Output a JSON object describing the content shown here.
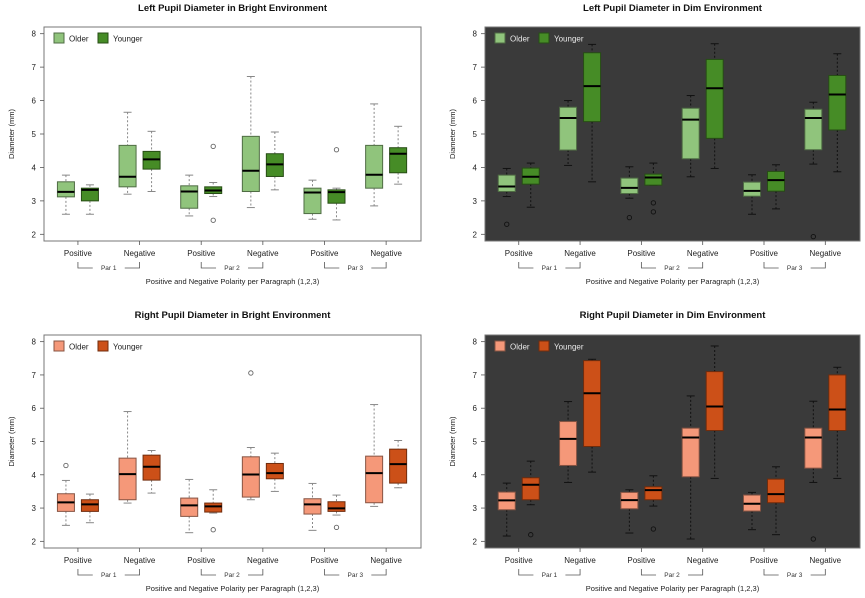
{
  "chart_data": [
    {
      "type": "boxplot",
      "id": "left-bright",
      "title": "Left Pupil Diameter in Bright Environment",
      "xlabel": "Positive and Negative Polarity per Paragraph (1,2,3)",
      "ylabel": "Diameter (mm)",
      "ylim": [
        1.8,
        8.2
      ],
      "yticks": [
        2,
        3,
        4,
        5,
        6,
        7,
        8
      ],
      "background": "#ffffff",
      "legend_text_color": "#222222",
      "legend": [
        {
          "name": "Older",
          "color": "#90c47c"
        },
        {
          "name": "Younger",
          "color": "#468c26"
        }
      ],
      "categories": [
        "Positive",
        "Negative",
        "Positive",
        "Negative",
        "Positive",
        "Negative"
      ],
      "groups": [
        "Par 1",
        "Par 2",
        "Par 3"
      ],
      "series": [
        {
          "name": "Older",
          "color": "#90c47c",
          "boxes": [
            {
              "min": 2.6,
              "q1": 3.12,
              "median": 3.27,
              "q3": 3.57,
              "max": 3.77,
              "outliers": []
            },
            {
              "min": 3.2,
              "q1": 3.42,
              "median": 3.72,
              "q3": 4.66,
              "max": 5.65,
              "outliers": []
            },
            {
              "min": 2.55,
              "q1": 2.78,
              "median": 3.28,
              "q3": 3.45,
              "max": 3.77,
              "outliers": []
            },
            {
              "min": 2.8,
              "q1": 3.28,
              "median": 3.9,
              "q3": 4.93,
              "max": 6.72,
              "outliers": []
            },
            {
              "min": 2.45,
              "q1": 2.62,
              "median": 3.25,
              "q3": 3.38,
              "max": 3.62,
              "outliers": []
            },
            {
              "min": 2.85,
              "q1": 3.38,
              "median": 3.78,
              "q3": 4.66,
              "max": 5.9,
              "outliers": []
            }
          ]
        },
        {
          "name": "Younger",
          "color": "#468c26",
          "boxes": [
            {
              "min": 2.6,
              "q1": 3.0,
              "median": 3.33,
              "q3": 3.38,
              "max": 3.48,
              "outliers": []
            },
            {
              "min": 3.28,
              "q1": 3.95,
              "median": 4.24,
              "q3": 4.48,
              "max": 5.08,
              "outliers": []
            },
            {
              "min": 3.13,
              "q1": 3.22,
              "median": 3.31,
              "q3": 3.42,
              "max": 3.55,
              "outliers": [
                4.63,
                2.42
              ]
            },
            {
              "min": 3.33,
              "q1": 3.73,
              "median": 4.09,
              "q3": 4.41,
              "max": 5.06,
              "outliers": []
            },
            {
              "min": 2.43,
              "q1": 2.93,
              "median": 3.26,
              "q3": 3.33,
              "max": 3.38,
              "outliers": [
                4.53
              ]
            },
            {
              "min": 3.5,
              "q1": 3.84,
              "median": 4.41,
              "q3": 4.59,
              "max": 5.23,
              "outliers": []
            }
          ]
        }
      ]
    },
    {
      "type": "boxplot",
      "id": "left-dim",
      "title": "Left Pupil Diameter in Dim Environment",
      "xlabel": "Positive and Negative Polarity per Paragraph (1,2,3)",
      "ylabel": "Diameter (mm)",
      "ylim": [
        1.8,
        8.2
      ],
      "yticks": [
        2,
        3,
        4,
        5,
        6,
        7,
        8
      ],
      "background": "#3a3a3a",
      "legend_text_color": "#e8e8e8",
      "legend": [
        {
          "name": "Older",
          "color": "#90c47c"
        },
        {
          "name": "Younger",
          "color": "#468c26"
        }
      ],
      "categories": [
        "Positive",
        "Negative",
        "Positive",
        "Negative",
        "Positive",
        "Negative"
      ],
      "groups": [
        "Par 1",
        "Par 2",
        "Par 3"
      ],
      "series": [
        {
          "name": "Older",
          "color": "#90c47c",
          "boxes": [
            {
              "min": 3.13,
              "q1": 3.28,
              "median": 3.43,
              "q3": 3.77,
              "max": 3.97,
              "outliers": [
                2.3
              ]
            },
            {
              "min": 4.06,
              "q1": 4.52,
              "median": 5.48,
              "q3": 5.8,
              "max": 6.0,
              "outliers": []
            },
            {
              "min": 3.08,
              "q1": 3.22,
              "median": 3.39,
              "q3": 3.68,
              "max": 4.02,
              "outliers": [
                2.5
              ]
            },
            {
              "min": 3.72,
              "q1": 4.26,
              "median": 5.43,
              "q3": 5.77,
              "max": 6.15,
              "outliers": []
            },
            {
              "min": 2.6,
              "q1": 3.14,
              "median": 3.3,
              "q3": 3.56,
              "max": 3.78,
              "outliers": []
            },
            {
              "min": 4.1,
              "q1": 4.53,
              "median": 5.48,
              "q3": 5.74,
              "max": 5.95,
              "outliers": [
                1.93
              ]
            }
          ]
        },
        {
          "name": "Younger",
          "color": "#468c26",
          "boxes": [
            {
              "min": 2.81,
              "q1": 3.5,
              "median": 3.72,
              "q3": 3.98,
              "max": 4.13,
              "outliers": []
            },
            {
              "min": 3.57,
              "q1": 5.37,
              "median": 6.43,
              "q3": 7.43,
              "max": 7.68,
              "outliers": []
            },
            {
              "min": 3.47,
              "q1": 3.47,
              "median": 3.7,
              "q3": 3.8,
              "max": 4.13,
              "outliers": [
                2.94,
                2.67
              ]
            },
            {
              "min": 3.97,
              "q1": 4.87,
              "median": 6.37,
              "q3": 7.23,
              "max": 7.7,
              "outliers": []
            },
            {
              "min": 2.76,
              "q1": 3.29,
              "median": 3.62,
              "q3": 3.88,
              "max": 4.08,
              "outliers": []
            },
            {
              "min": 3.87,
              "q1": 5.12,
              "median": 6.18,
              "q3": 6.75,
              "max": 7.4,
              "outliers": []
            }
          ]
        }
      ]
    },
    {
      "type": "boxplot",
      "id": "right-bright",
      "title": "Right Pupil Diameter in Bright Environment",
      "xlabel": "Positive and Negative Polarity per Paragraph (1,2,3)",
      "ylabel": "Diameter (mm)",
      "ylim": [
        1.8,
        8.2
      ],
      "yticks": [
        2,
        3,
        4,
        5,
        6,
        7,
        8
      ],
      "background": "#ffffff",
      "legend_text_color": "#222222",
      "legend": [
        {
          "name": "Older",
          "color": "#f59879"
        },
        {
          "name": "Younger",
          "color": "#cc5018"
        }
      ],
      "categories": [
        "Positive",
        "Negative",
        "Positive",
        "Negative",
        "Positive",
        "Negative"
      ],
      "groups": [
        "Par 1",
        "Par 2",
        "Par 3"
      ],
      "series": [
        {
          "name": "Older",
          "color": "#f59879",
          "boxes": [
            {
              "min": 2.48,
              "q1": 2.9,
              "median": 3.17,
              "q3": 3.43,
              "max": 3.83,
              "outliers": [
                4.28
              ]
            },
            {
              "min": 3.15,
              "q1": 3.25,
              "median": 4.02,
              "q3": 4.5,
              "max": 5.9,
              "outliers": []
            },
            {
              "min": 2.26,
              "q1": 2.75,
              "median": 3.08,
              "q3": 3.3,
              "max": 3.86,
              "outliers": []
            },
            {
              "min": 3.25,
              "q1": 3.33,
              "median": 4.01,
              "q3": 4.54,
              "max": 4.82,
              "outliers": [
                7.06
              ]
            },
            {
              "min": 2.33,
              "q1": 2.82,
              "median": 3.11,
              "q3": 3.28,
              "max": 3.74,
              "outliers": []
            },
            {
              "min": 3.05,
              "q1": 3.16,
              "median": 4.05,
              "q3": 4.56,
              "max": 6.11,
              "outliers": []
            }
          ]
        },
        {
          "name": "Younger",
          "color": "#cc5018",
          "boxes": [
            {
              "min": 2.56,
              "q1": 2.9,
              "median": 3.11,
              "q3": 3.25,
              "max": 3.42,
              "outliers": []
            },
            {
              "min": 3.45,
              "q1": 3.84,
              "median": 4.24,
              "q3": 4.59,
              "max": 4.73,
              "outliers": []
            },
            {
              "min": 2.85,
              "q1": 2.88,
              "median": 3.05,
              "q3": 3.15,
              "max": 3.55,
              "outliers": [
                2.35
              ]
            },
            {
              "min": 3.5,
              "q1": 3.88,
              "median": 4.05,
              "q3": 4.34,
              "max": 4.65,
              "outliers": []
            },
            {
              "min": 2.79,
              "q1": 2.9,
              "median": 2.99,
              "q3": 3.19,
              "max": 3.39,
              "outliers": [
                2.42
              ]
            },
            {
              "min": 3.61,
              "q1": 3.75,
              "median": 4.32,
              "q3": 4.77,
              "max": 5.03,
              "outliers": []
            }
          ]
        }
      ]
    },
    {
      "type": "boxplot",
      "id": "right-dim",
      "title": "Right Pupil Diameter in Dim Environment",
      "xlabel": "Positive and Negative Polarity per Paragraph (1,2,3)",
      "ylabel": "Diameter (mm)",
      "ylim": [
        1.8,
        8.2
      ],
      "yticks": [
        2,
        3,
        4,
        5,
        6,
        7,
        8
      ],
      "background": "#3a3a3a",
      "legend_text_color": "#e8e8e8",
      "legend": [
        {
          "name": "Older",
          "color": "#f59879"
        },
        {
          "name": "Younger",
          "color": "#cc5018"
        }
      ],
      "categories": [
        "Positive",
        "Negative",
        "Positive",
        "Negative",
        "Positive",
        "Negative"
      ],
      "groups": [
        "Par 1",
        "Par 2",
        "Par 3"
      ],
      "series": [
        {
          "name": "Older",
          "color": "#f59879",
          "boxes": [
            {
              "min": 2.16,
              "q1": 2.95,
              "median": 3.23,
              "q3": 3.48,
              "max": 3.75,
              "outliers": []
            },
            {
              "min": 3.77,
              "q1": 4.28,
              "median": 5.08,
              "q3": 5.6,
              "max": 6.2,
              "outliers": []
            },
            {
              "min": 2.25,
              "q1": 2.98,
              "median": 3.24,
              "q3": 3.47,
              "max": 3.55,
              "outliers": []
            },
            {
              "min": 2.07,
              "q1": 3.94,
              "median": 5.12,
              "q3": 5.4,
              "max": 6.37,
              "outliers": []
            },
            {
              "min": 2.35,
              "q1": 2.91,
              "median": 3.13,
              "q3": 3.39,
              "max": 3.47,
              "outliers": []
            },
            {
              "min": 3.77,
              "q1": 4.2,
              "median": 5.12,
              "q3": 5.4,
              "max": 6.21,
              "outliers": [
                2.07
              ]
            }
          ]
        },
        {
          "name": "Younger",
          "color": "#cc5018",
          "boxes": [
            {
              "min": 3.1,
              "q1": 3.25,
              "median": 3.7,
              "q3": 3.91,
              "max": 4.41,
              "outliers": [
                2.2
              ]
            },
            {
              "min": 4.08,
              "q1": 4.85,
              "median": 6.45,
              "q3": 7.43,
              "max": 7.47,
              "outliers": []
            },
            {
              "min": 3.06,
              "q1": 3.25,
              "median": 3.54,
              "q3": 3.64,
              "max": 3.97,
              "outliers": [
                2.37
              ]
            },
            {
              "min": 3.89,
              "q1": 5.33,
              "median": 6.05,
              "q3": 7.1,
              "max": 7.87,
              "outliers": []
            },
            {
              "min": 2.2,
              "q1": 3.16,
              "median": 3.42,
              "q3": 3.87,
              "max": 4.24,
              "outliers": []
            },
            {
              "min": 3.89,
              "q1": 5.33,
              "median": 5.96,
              "q3": 7.0,
              "max": 7.23,
              "outliers": []
            }
          ]
        }
      ]
    }
  ]
}
